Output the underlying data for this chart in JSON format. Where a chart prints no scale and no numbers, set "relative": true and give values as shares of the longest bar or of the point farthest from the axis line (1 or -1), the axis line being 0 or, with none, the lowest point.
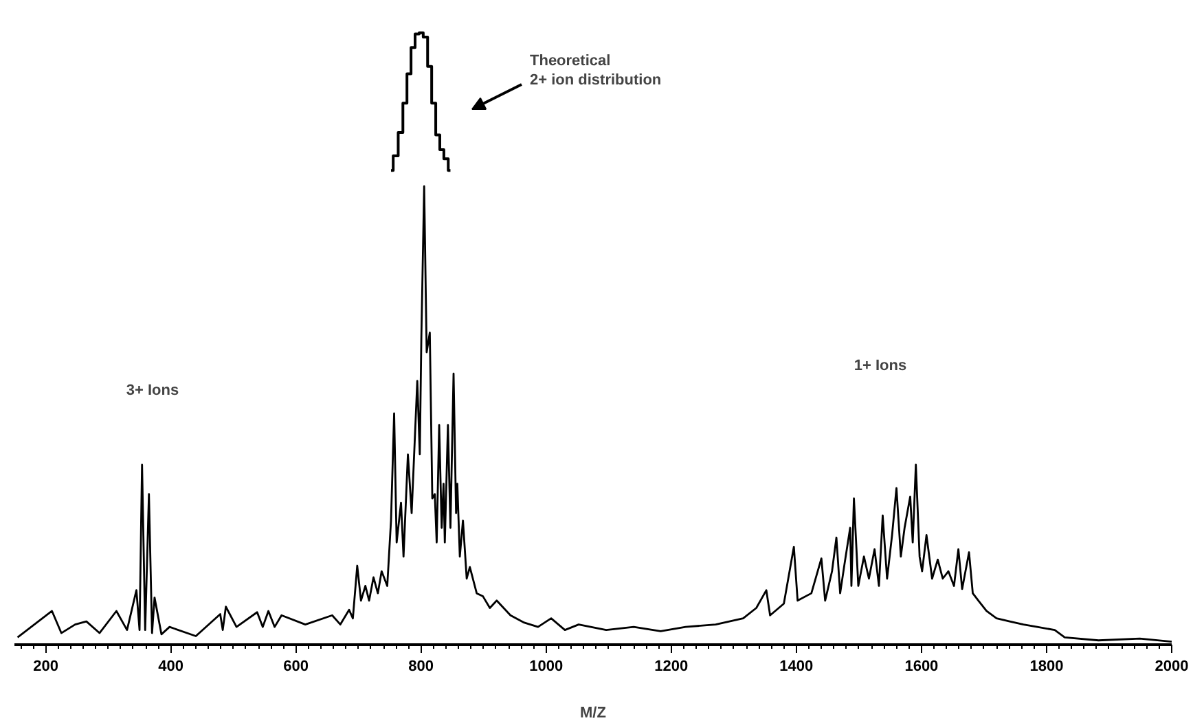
{
  "chart_data": {
    "type": "line",
    "relative": true,
    "xlabel": "M/Z",
    "xlim": [
      150,
      2000
    ],
    "xticks": [
      200,
      400,
      600,
      800,
      1000,
      1200,
      1400,
      1600,
      1800,
      2000
    ],
    "grid": false,
    "tick_labels": "x",
    "marker": "none",
    "line_style": "solid",
    "series": [
      {
        "color": "#000000",
        "x": [
          155,
          210,
          225,
          247,
          265,
          286,
          313,
          330,
          345,
          350,
          354,
          359,
          365,
          370,
          374,
          385,
          398,
          440,
          479,
          483,
          488,
          505,
          538,
          547,
          556,
          566,
          577,
          615,
          658,
          671,
          685,
          691,
          698,
          704,
          711,
          717,
          724,
          731,
          737,
          746,
          752,
          757,
          761,
          768,
          772,
          779,
          785,
          794,
          798,
          800.5,
          805,
          809,
          814,
          818,
          822,
          825,
          829,
          833,
          836,
          838,
          843,
          847,
          852,
          856,
          858,
          862,
          867,
          873,
          878,
          889,
          899,
          910,
          921,
          943,
          965,
          987,
          1008,
          1030,
          1052,
          1096,
          1140,
          1183,
          1223,
          1271,
          1315,
          1336,
          1352,
          1358,
          1380,
          1396,
          1402,
          1424,
          1440,
          1446,
          1457,
          1464,
          1470,
          1477,
          1486,
          1488,
          1492,
          1499,
          1508,
          1516,
          1525,
          1532,
          1538,
          1545,
          1553,
          1560,
          1567,
          1573,
          1582,
          1586,
          1591,
          1597,
          1601,
          1608,
          1617,
          1626,
          1634,
          1643,
          1652,
          1659,
          1665,
          1676,
          1682,
          1691,
          1704,
          1720,
          1741,
          1763,
          1785,
          1813,
          1829,
          1883,
          1949,
          2000
        ],
        "values": [
          0.012,
          0.055,
          0.019,
          0.033,
          0.038,
          0.019,
          0.055,
          0.024,
          0.089,
          0.024,
          0.294,
          0.024,
          0.246,
          0.019,
          0.077,
          0.017,
          0.029,
          0.014,
          0.05,
          0.024,
          0.062,
          0.029,
          0.053,
          0.029,
          0.055,
          0.029,
          0.048,
          0.033,
          0.048,
          0.033,
          0.057,
          0.043,
          0.129,
          0.072,
          0.096,
          0.072,
          0.11,
          0.084,
          0.12,
          0.096,
          0.203,
          0.378,
          0.167,
          0.232,
          0.144,
          0.311,
          0.215,
          0.431,
          0.311,
          0.502,
          0.749,
          0.478,
          0.51,
          0.239,
          0.246,
          0.167,
          0.359,
          0.191,
          0.263,
          0.167,
          0.359,
          0.191,
          0.443,
          0.215,
          0.263,
          0.144,
          0.203,
          0.108,
          0.127,
          0.084,
          0.079,
          0.06,
          0.072,
          0.048,
          0.036,
          0.029,
          0.043,
          0.024,
          0.033,
          0.024,
          0.029,
          0.022,
          0.029,
          0.033,
          0.043,
          0.06,
          0.089,
          0.048,
          0.067,
          0.16,
          0.072,
          0.084,
          0.141,
          0.072,
          0.12,
          0.175,
          0.084,
          0.132,
          0.191,
          0.096,
          0.239,
          0.096,
          0.144,
          0.108,
          0.156,
          0.096,
          0.211,
          0.108,
          0.179,
          0.256,
          0.144,
          0.191,
          0.242,
          0.167,
          0.294,
          0.144,
          0.12,
          0.179,
          0.108,
          0.139,
          0.108,
          0.12,
          0.096,
          0.156,
          0.091,
          0.151,
          0.084,
          0.072,
          0.055,
          0.043,
          0.038,
          0.033,
          0.029,
          0.024,
          0.012,
          0.007,
          0.01,
          0.005
        ]
      },
      {
        "type": "step",
        "color": "#000000",
        "x": [
          752,
          759,
          768,
          774,
          781,
          787,
          794,
          800,
          807,
          814,
          820,
          827,
          833,
          840,
          847
        ],
        "values": [
          0.775,
          0.799,
          0.837,
          0.885,
          0.933,
          0.976,
          0.998,
          1.0,
          0.993,
          0.945,
          0.885,
          0.833,
          0.809,
          0.794,
          0.775
        ]
      }
    ],
    "annotations": [
      "Theoretical\n2+ ion distribution",
      "3+  Ions",
      "1+ Ions"
    ]
  }
}
